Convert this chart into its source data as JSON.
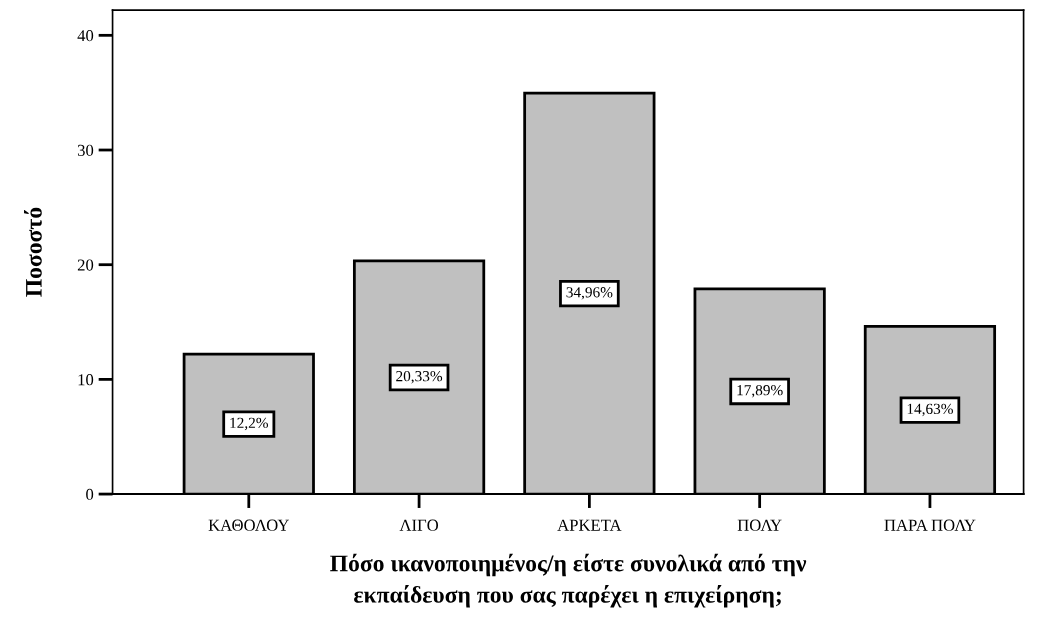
{
  "chart_data": {
    "type": "bar",
    "categories": [
      "ΚΑΘΟΛΟΥ",
      "ΛΙΓΟ",
      "ΑΡΚΕΤΑ",
      "ΠΟΛΥ",
      "ΠΑΡΑ ΠΟΛΥ"
    ],
    "values": [
      12.2,
      20.33,
      34.96,
      17.89,
      14.63
    ],
    "value_labels": [
      "12,2%",
      "20,33%",
      "34,96%",
      "17,89%",
      "14,63%"
    ],
    "color": "#c0c0c0",
    "xlabel": "Πόσο ικανοποιημένος/η είστε συνολικά από την\nεκπαίδευση που σας παρέχει η επιχείρηση;",
    "ylabel": "Ποσοστό",
    "ylim": [
      0,
      42.2
    ],
    "yticks": [
      0,
      10,
      20,
      30,
      40
    ],
    "grid": false,
    "legend": false
  }
}
